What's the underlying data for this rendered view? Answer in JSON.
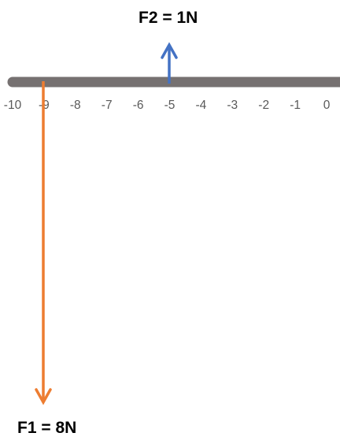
{
  "beam": {
    "color": "#767171",
    "ticks": [
      "-10",
      "-9",
      "-8",
      "-7",
      "-6",
      "-5",
      "-4",
      "-3",
      "-2",
      "-1",
      "0"
    ],
    "tick_color": "#595959"
  },
  "forces": {
    "f1": {
      "label": "F1 = 8N",
      "position": -9,
      "magnitude": 8,
      "direction": "down",
      "color": "#ED7D31"
    },
    "f2": {
      "label": "F2 = 1N",
      "position": -5,
      "magnitude": 1,
      "direction": "up",
      "color": "#4472C4"
    }
  }
}
